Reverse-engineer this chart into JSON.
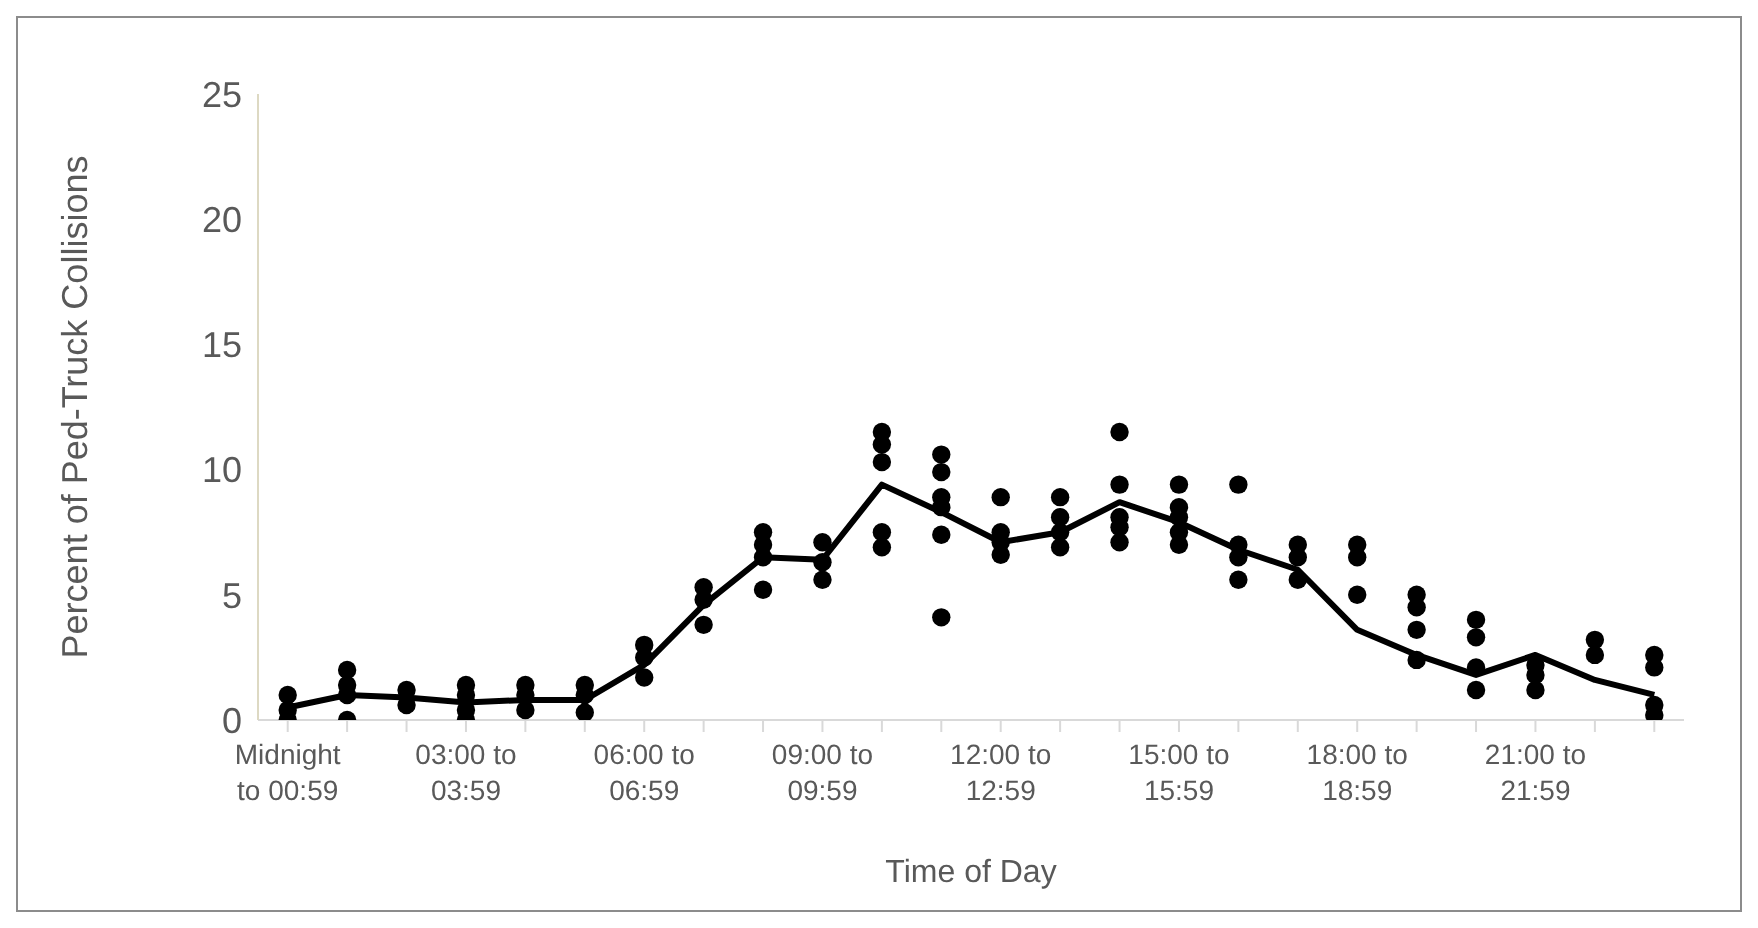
{
  "chart_data": {
    "type": "scatter",
    "xlabel": "Time of Day",
    "ylabel": "Percent of Ped-Truck Collisions",
    "categories": [
      "Midnight to 00:59",
      null,
      null,
      "03:00 to 03:59",
      null,
      null,
      "06:00 to 06:59",
      null,
      null,
      "09:00 to 09:59",
      null,
      null,
      "12:00 to 12:59",
      null,
      null,
      "15:00 to 15:59",
      null,
      null,
      "18:00 to 18:59",
      null,
      null,
      "21:00 to 21:59",
      null,
      null
    ],
    "ylim": [
      0,
      25
    ],
    "yticks": [
      0,
      5,
      10,
      15,
      20,
      25
    ],
    "marker": "circle",
    "series": [
      {
        "color": "#000000",
        "values": [
          1.0,
          2.0,
          1.2,
          1.4,
          1.4,
          1.4,
          3.0,
          5.3,
          7.5,
          7.1,
          11.5,
          10.6,
          8.9,
          8.9,
          11.5,
          9.4,
          9.4,
          7.0,
          7.0,
          5.0,
          4.0,
          2.2,
          3.2,
          2.6
        ]
      },
      {
        "color": "#000000",
        "values": [
          0.4,
          1.4,
          0.6,
          1.0,
          1.0,
          1.0,
          2.5,
          4.8,
          7.0,
          6.3,
          11.0,
          9.9,
          7.5,
          8.1,
          9.4,
          8.5,
          7.0,
          6.5,
          6.5,
          4.5,
          3.3,
          1.8,
          2.6,
          2.1
        ]
      },
      {
        "color": "#000000",
        "values": [
          0,
          1.0,
          null,
          0.4,
          0.4,
          0.3,
          1.7,
          3.8,
          6.5,
          5.6,
          10.3,
          8.9,
          7.1,
          7.5,
          8.1,
          8.1,
          6.5,
          5.6,
          null,
          3.6,
          2.1,
          1.2,
          null,
          0.6
        ]
      },
      {
        "color": "#000000",
        "values": [
          null,
          0,
          null,
          0,
          null,
          null,
          null,
          null,
          5.2,
          null,
          7.5,
          8.5,
          6.6,
          6.9,
          7.7,
          7.5,
          5.6,
          null,
          5.0,
          null,
          1.2,
          null,
          null,
          0.2
        ]
      },
      {
        "color": "#000000",
        "values": [
          null,
          null,
          null,
          null,
          null,
          null,
          null,
          null,
          null,
          null,
          6.9,
          7.4,
          null,
          null,
          7.1,
          7.0,
          null,
          null,
          null,
          2.4,
          null,
          null,
          null,
          null
        ]
      },
      {
        "color": "#000000",
        "values": [
          null,
          null,
          null,
          null,
          null,
          null,
          null,
          null,
          null,
          null,
          null,
          4.1,
          null,
          null,
          null,
          null,
          null,
          null,
          null,
          null,
          null,
          null,
          null,
          null
        ]
      },
      {
        "type": "line",
        "color": "#000000",
        "marker": "none",
        "values": [
          0.5,
          1.0,
          0.9,
          0.7,
          0.8,
          0.8,
          2.2,
          4.6,
          6.5,
          6.4,
          9.4,
          8.3,
          7.1,
          7.5,
          8.7,
          7.9,
          6.8,
          6.0,
          3.6,
          2.6,
          1.8,
          2.6,
          1.6,
          1.0
        ]
      }
    ]
  }
}
